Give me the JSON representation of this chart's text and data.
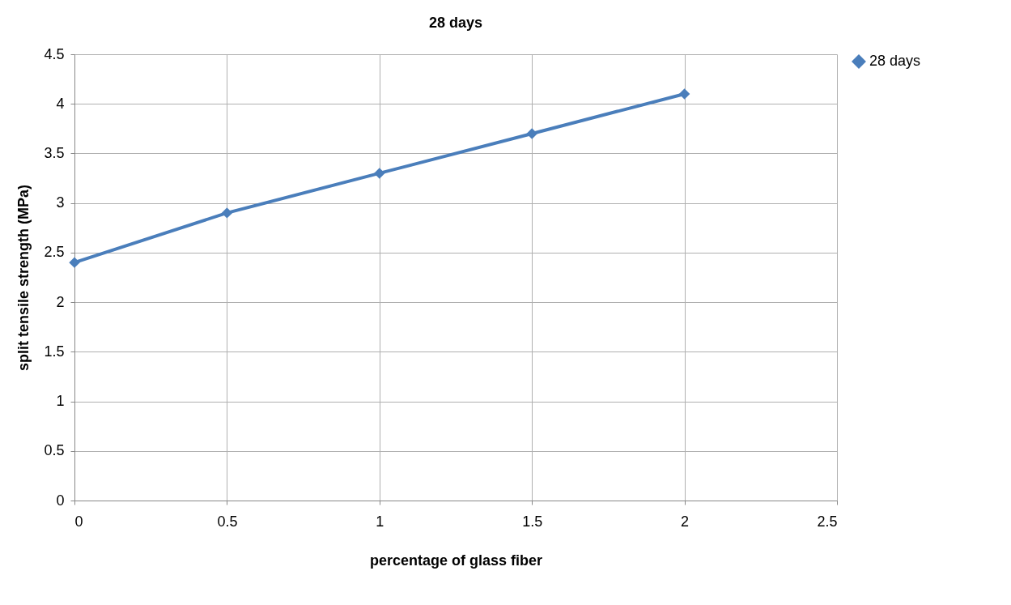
{
  "chart_data": {
    "type": "line",
    "title": "28 days",
    "xlabel": "percentage of glass fiber",
    "ylabel": "split tensile strength (MPa)",
    "x": [
      0,
      0.5,
      1,
      1.5,
      2
    ],
    "series": [
      {
        "name": "28 days",
        "color": "#4a7ebb",
        "values": [
          2.4,
          2.9,
          3.3,
          3.7,
          4.1
        ]
      }
    ],
    "xlim": [
      0,
      2.5
    ],
    "xticks": [
      0,
      0.5,
      1,
      1.5,
      2,
      2.5
    ],
    "ylim": [
      0,
      4.5
    ],
    "yticks": [
      0,
      0.5,
      1,
      1.5,
      2,
      2.5,
      3,
      3.5,
      4,
      4.5
    ],
    "grid": true,
    "legend": "right",
    "marker": "diamond",
    "line_style": "solid"
  }
}
